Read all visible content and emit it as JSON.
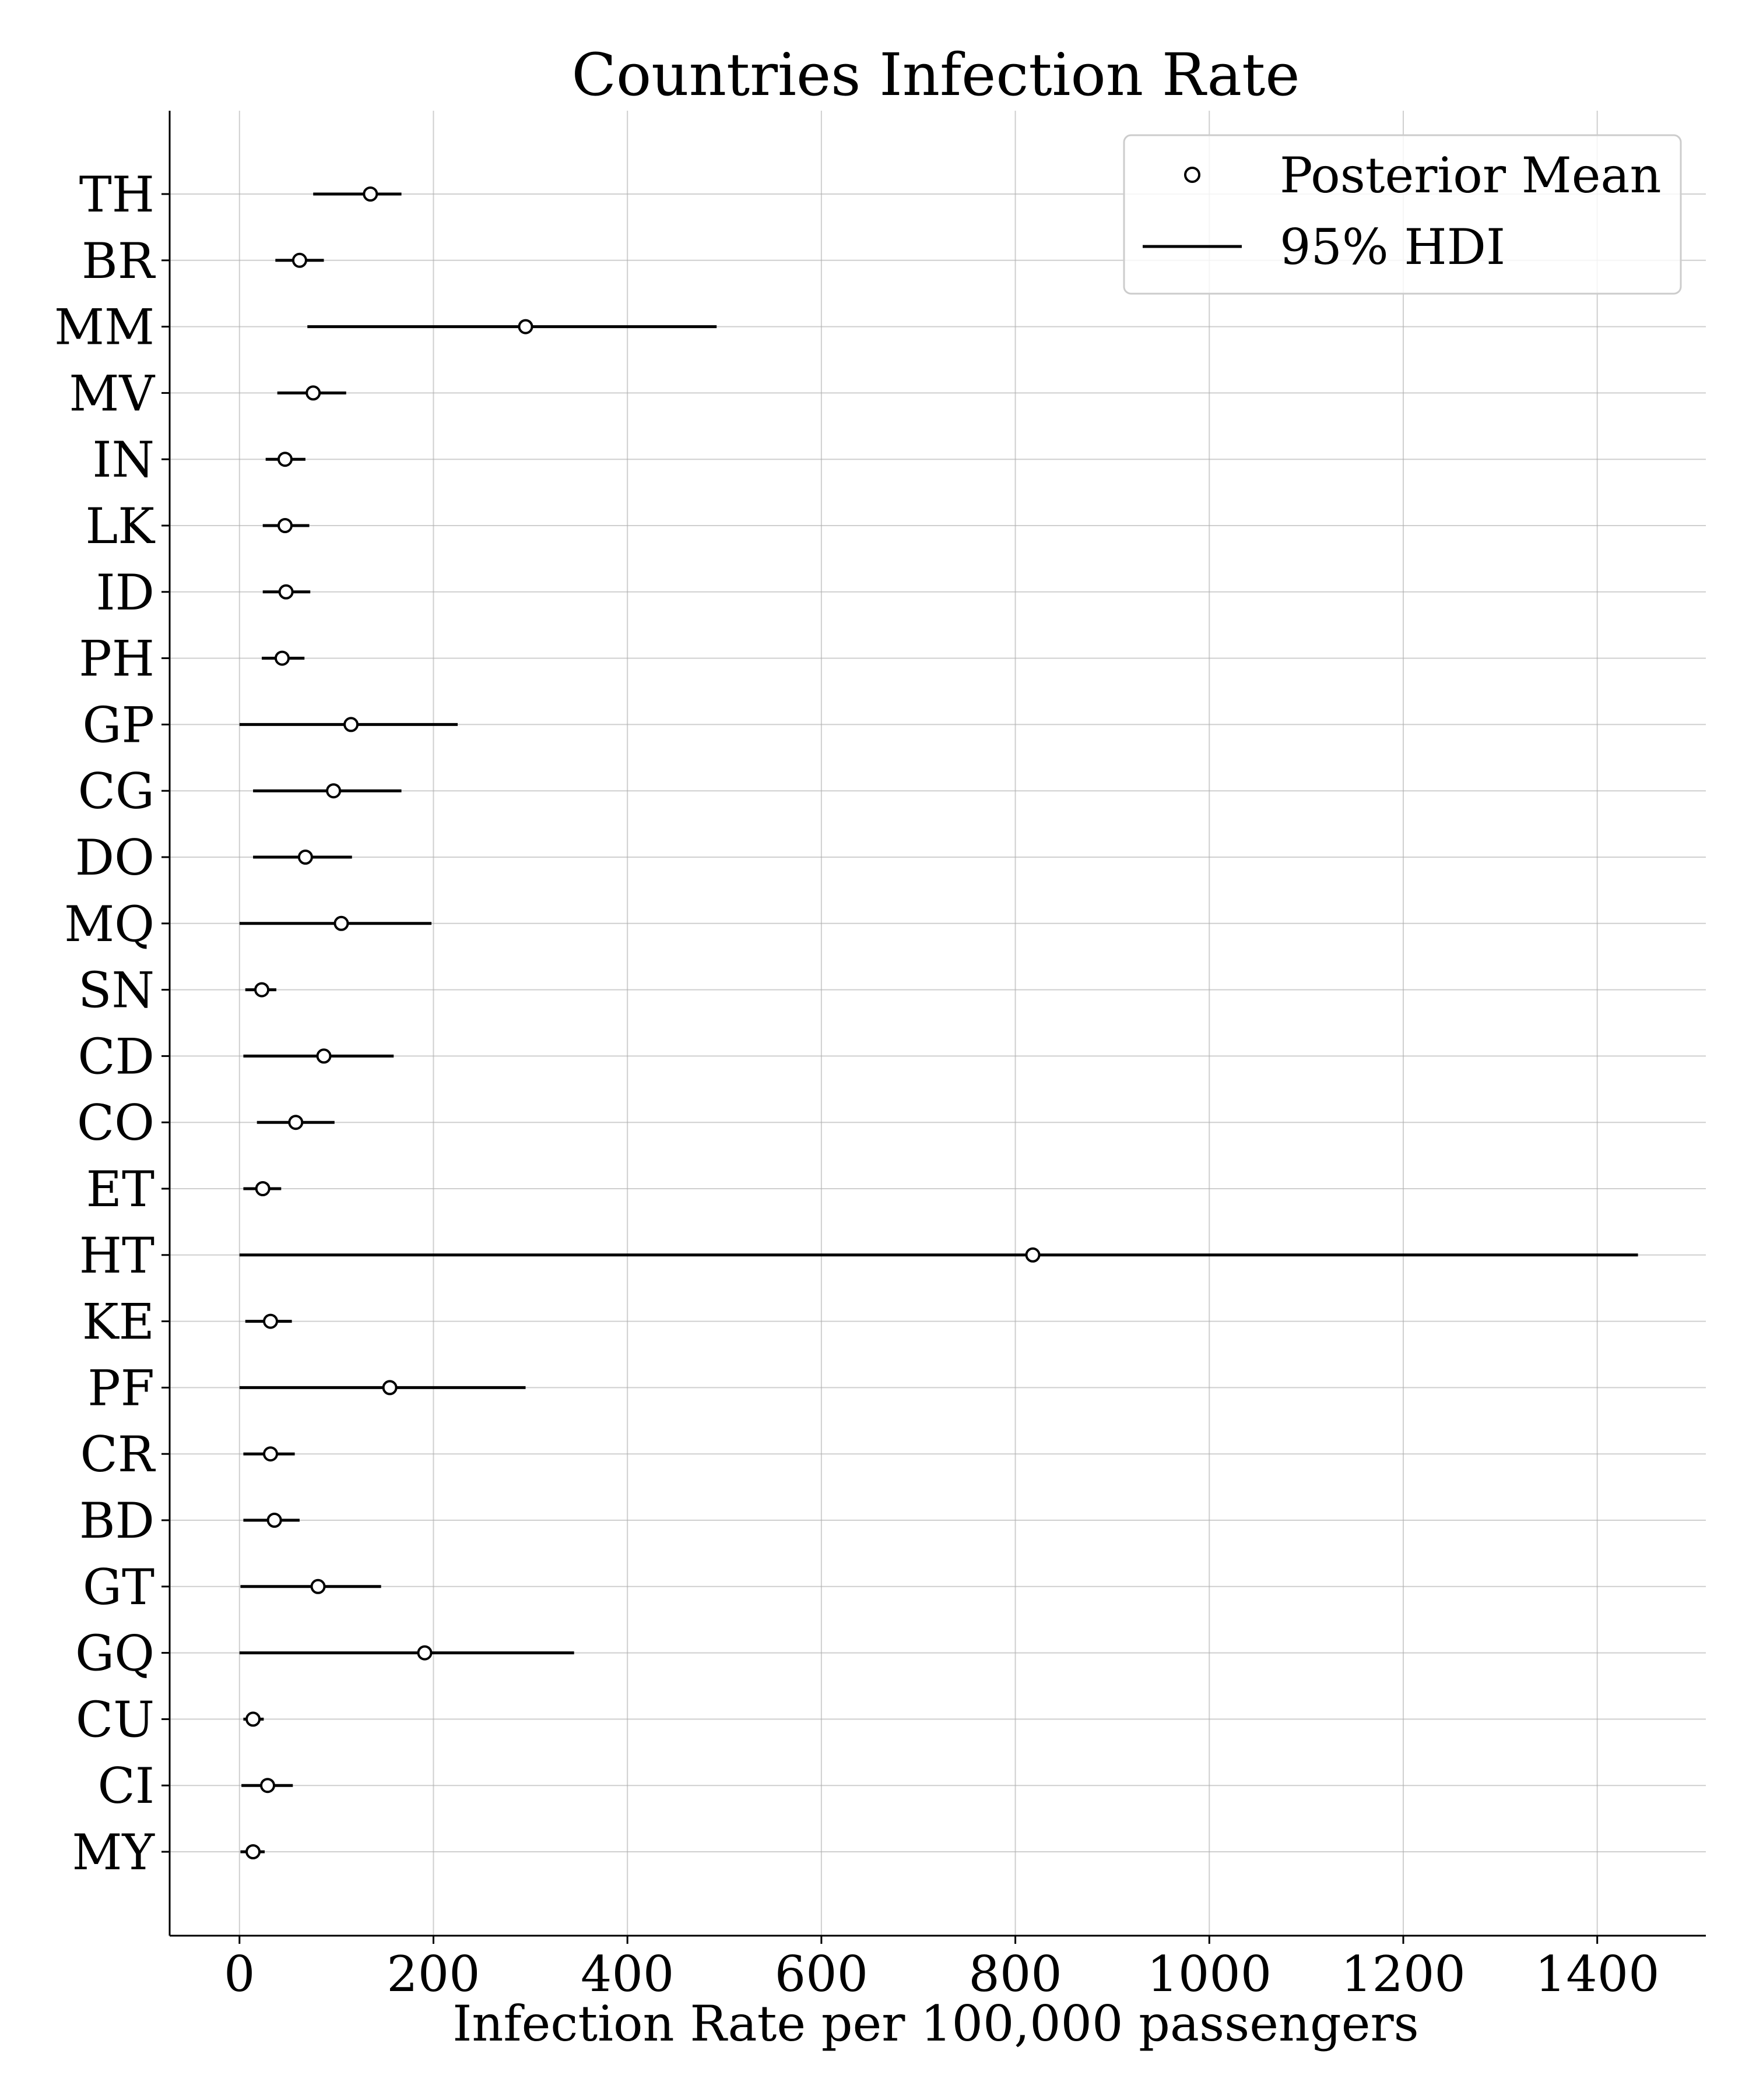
{
  "chart_data": {
    "type": "forest",
    "title": "Countries Infection Rate",
    "xlabel": "Infection Rate per 100,000 passengers",
    "ylabel": "",
    "xlim": [
      -72,
      1512
    ],
    "xticks": [
      0,
      200,
      400,
      600,
      800,
      1000,
      1200,
      1400
    ],
    "grid": true,
    "legend": {
      "placement": "top-right",
      "entries": [
        {
          "label": "Posterior Mean",
          "marker": "circle-open"
        },
        {
          "label": "95% HDI",
          "marker": "line"
        }
      ]
    },
    "categories": [
      "TH",
      "BR",
      "MM",
      "MV",
      "IN",
      "LK",
      "ID",
      "PH",
      "GP",
      "CG",
      "DO",
      "MQ",
      "SN",
      "CD",
      "CO",
      "ET",
      "HT",
      "KE",
      "PF",
      "CR",
      "BD",
      "GT",
      "GQ",
      "CU",
      "CI",
      "MY"
    ],
    "series": [
      {
        "name": "Posterior Mean",
        "values": [
          135,
          62,
          295,
          76,
          47,
          47,
          48,
          44,
          115,
          97,
          68,
          105,
          23,
          87,
          58,
          24,
          818,
          32,
          155,
          32,
          36,
          81,
          191,
          14,
          29,
          14
        ]
      },
      {
        "name": "95% HDI",
        "low": [
          76,
          37,
          70,
          39,
          27,
          24,
          24,
          23,
          0,
          14,
          14,
          0,
          6,
          4,
          18,
          4,
          0,
          6,
          0,
          4,
          4,
          1,
          0,
          4,
          2,
          1
        ],
        "high": [
          167,
          87,
          492,
          110,
          68,
          72,
          73,
          67,
          225,
          167,
          116,
          198,
          38,
          159,
          98,
          43,
          1442,
          54,
          295,
          57,
          62,
          146,
          345,
          25,
          55,
          26
        ]
      }
    ]
  },
  "colors": {
    "line": "#000000",
    "marker_fill": "#ffffff",
    "grid": "#b0b0b0"
  }
}
